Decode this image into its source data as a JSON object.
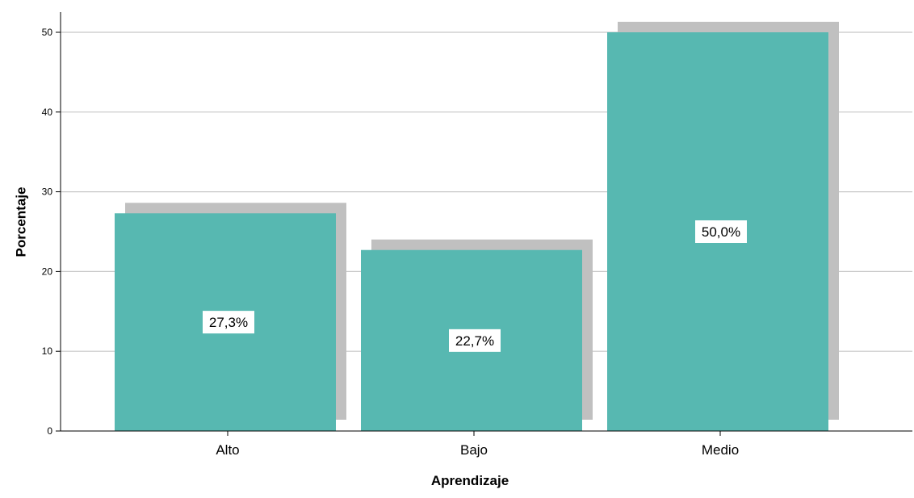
{
  "chart_data": {
    "type": "bar",
    "categories": [
      "Alto",
      "Bajo",
      "Medio"
    ],
    "values": [
      27.3,
      22.7,
      50.0
    ],
    "data_labels": [
      "27,3%",
      "22,7%",
      "50,0%"
    ],
    "xlabel": "Aprendizaje",
    "ylabel": "Porcentaje",
    "ylim": [
      0,
      50
    ],
    "yticks": [
      0,
      10,
      20,
      30,
      40,
      50
    ],
    "ytick_labels": [
      "0",
      "10",
      "20",
      "30",
      "40",
      "50"
    ],
    "grid": "horizontal",
    "bar_style": "3d-shadow",
    "colors": {
      "bar": "#57b8b1",
      "shadow": "#c0c0c0",
      "grid": "#c8c8c8",
      "axis": "#000000",
      "label_bg": "#ffffff"
    }
  }
}
